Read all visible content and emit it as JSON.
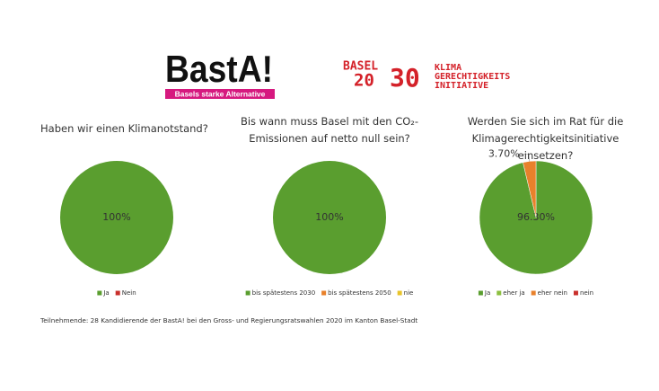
{
  "logos": {
    "basta": "BastA!",
    "basta_tagline": "Basels starke Alternative",
    "basel": "BASEL",
    "twenty": "20",
    "thirty": "30",
    "klima": [
      "KLIMA",
      "GERECHTIGKEITS",
      "INITIATIVE"
    ]
  },
  "chart_data": [
    {
      "type": "pie",
      "title": "Haben wir einen Klimanotstand?",
      "categories": [
        "Ja",
        "Nein"
      ],
      "values": [
        100,
        0
      ],
      "value_labels": [
        "100%",
        null
      ],
      "colors": [
        "#5a9e2f",
        "#c9302c"
      ],
      "legend": "bottom"
    },
    {
      "type": "pie",
      "title": "Bis wann muss Basel mit den CO₂-Emissionen auf netto null sein?",
      "categories": [
        "bis spätestens 2030",
        "bis spätestens 2050",
        "nie"
      ],
      "values": [
        100,
        0,
        0
      ],
      "value_labels": [
        "100%",
        null,
        null
      ],
      "colors": [
        "#5a9e2f",
        "#e8812b",
        "#e8c42b"
      ],
      "legend": "bottom"
    },
    {
      "type": "pie",
      "title": "Werden Sie sich im Rat für die Klimagerechtigkeitsinitiative einsetzen?",
      "categories": [
        "Ja",
        "eher ja",
        "eher nein",
        "nein"
      ],
      "values": [
        96.3,
        0,
        3.7,
        0
      ],
      "value_labels": [
        "96.30%",
        null,
        "3.70%",
        null
      ],
      "colors": [
        "#5a9e2f",
        "#8cbf3f",
        "#e8812b",
        "#c9302c"
      ],
      "legend": "bottom"
    }
  ],
  "footnote": "Teilnehmende: 28 Kandidierende der BastA! bei den Gross- und Regierungsratswahlen 2020 im Kanton Basel-Stadt"
}
